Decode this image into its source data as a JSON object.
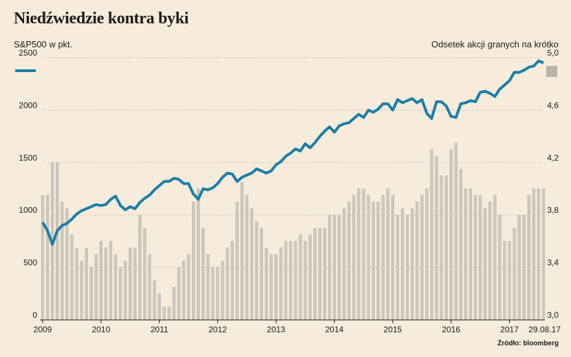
{
  "title": "Niedźwiedzie kontra byki",
  "left_axis_label": "S&P500 w pkt.",
  "right_axis_label": "Odsetek akcji granych na krótko",
  "source": "Źródło: bloomberg",
  "colors": {
    "background": "#f7ebdc",
    "line": "#1a7fa6",
    "bars": "#cfc7bc",
    "bar_edge": "#b5ada3",
    "grid": "#9a9a9a"
  },
  "chart_data": {
    "type": "line+bar",
    "left_axis": {
      "label": "S&P500 w pkt.",
      "ylim": [
        0,
        2500
      ],
      "ticks": [
        0,
        500,
        1000,
        1500,
        2000,
        2500
      ]
    },
    "right_axis": {
      "label": "Odsetek akcji granych na krótko",
      "ylim": [
        3.0,
        5.0
      ],
      "ticks": [
        "3,0",
        "3,4",
        "3,8",
        "4,2",
        "4,6",
        "5,0"
      ]
    },
    "x_ticks": [
      "2009",
      "2010",
      "2011",
      "2012",
      "2013",
      "2014",
      "2015",
      "2016",
      "2017",
      "29.08.17"
    ],
    "x_range": [
      "2009-01",
      "2017-08"
    ],
    "grid": "horizontal dotted",
    "legend": {
      "position": "top-left",
      "line_marker": "S&P500",
      "bar_marker": "short interest"
    },
    "series": [
      {
        "kind": "line",
        "axis": "left",
        "x": [
          "2009-01",
          "2009-02",
          "2009-03",
          "2009-04",
          "2009-05",
          "2009-06",
          "2009-07",
          "2009-08",
          "2009-09",
          "2009-10",
          "2009-11",
          "2009-12",
          "2010-01",
          "2010-02",
          "2010-03",
          "2010-04",
          "2010-05",
          "2010-06",
          "2010-07",
          "2010-08",
          "2010-09",
          "2010-10",
          "2010-11",
          "2010-12",
          "2011-01",
          "2011-02",
          "2011-03",
          "2011-04",
          "2011-05",
          "2011-06",
          "2011-07",
          "2011-08",
          "2011-09",
          "2011-10",
          "2011-11",
          "2011-12",
          "2012-01",
          "2012-02",
          "2012-03",
          "2012-04",
          "2012-05",
          "2012-06",
          "2012-07",
          "2012-08",
          "2012-09",
          "2012-10",
          "2012-11",
          "2012-12",
          "2013-01",
          "2013-02",
          "2013-03",
          "2013-04",
          "2013-05",
          "2013-06",
          "2013-07",
          "2013-08",
          "2013-09",
          "2013-10",
          "2013-11",
          "2013-12",
          "2014-01",
          "2014-02",
          "2014-03",
          "2014-04",
          "2014-05",
          "2014-06",
          "2014-07",
          "2014-08",
          "2014-09",
          "2014-10",
          "2014-11",
          "2014-12",
          "2015-01",
          "2015-02",
          "2015-03",
          "2015-04",
          "2015-05",
          "2015-06",
          "2015-07",
          "2015-08",
          "2015-09",
          "2015-10",
          "2015-11",
          "2015-12",
          "2016-01",
          "2016-02",
          "2016-03",
          "2016-04",
          "2016-05",
          "2016-06",
          "2016-07",
          "2016-08",
          "2016-09",
          "2016-10",
          "2016-11",
          "2016-12",
          "2017-01",
          "2017-02",
          "2017-03",
          "2017-04",
          "2017-05",
          "2017-06",
          "2017-07",
          "2017-08"
        ],
        "values": [
          930,
          850,
          720,
          850,
          900,
          920,
          960,
          1010,
          1040,
          1060,
          1080,
          1100,
          1090,
          1100,
          1150,
          1180,
          1090,
          1050,
          1080,
          1060,
          1120,
          1160,
          1190,
          1240,
          1280,
          1320,
          1320,
          1350,
          1340,
          1300,
          1300,
          1200,
          1150,
          1250,
          1240,
          1260,
          1300,
          1360,
          1400,
          1390,
          1320,
          1360,
          1380,
          1400,
          1440,
          1420,
          1400,
          1420,
          1480,
          1510,
          1560,
          1590,
          1630,
          1610,
          1680,
          1640,
          1690,
          1750,
          1800,
          1840,
          1790,
          1850,
          1870,
          1880,
          1920,
          1960,
          1930,
          2000,
          1980,
          2010,
          2060,
          2060,
          2000,
          2100,
          2070,
          2090,
          2110,
          2070,
          2100,
          1970,
          1920,
          2080,
          2080,
          2040,
          1940,
          1930,
          2060,
          2070,
          2090,
          2080,
          2170,
          2180,
          2160,
          2130,
          2200,
          2240,
          2280,
          2360,
          2360,
          2380,
          2410,
          2420,
          2470,
          2450
        ]
      },
      {
        "kind": "bar",
        "axis": "right",
        "values": [
          3.95,
          3.95,
          4.2,
          4.2,
          3.9,
          3.85,
          3.65,
          3.55,
          3.45,
          3.55,
          3.4,
          3.5,
          3.6,
          3.55,
          3.6,
          3.5,
          3.4,
          3.45,
          3.55,
          3.55,
          3.8,
          3.7,
          3.5,
          3.3,
          3.2,
          3.1,
          3.1,
          3.25,
          3.4,
          3.45,
          3.5,
          3.9,
          4.0,
          3.7,
          3.5,
          3.4,
          3.4,
          3.45,
          3.55,
          3.6,
          3.9,
          4.05,
          3.95,
          3.85,
          3.75,
          3.7,
          3.55,
          3.5,
          3.5,
          3.55,
          3.6,
          3.6,
          3.6,
          3.65,
          3.6,
          3.65,
          3.7,
          3.7,
          3.7,
          3.8,
          3.8,
          3.8,
          3.85,
          3.9,
          3.95,
          4.0,
          4.0,
          3.95,
          3.9,
          3.9,
          3.95,
          4.0,
          3.95,
          3.8,
          3.85,
          3.8,
          3.85,
          3.9,
          3.95,
          4.0,
          4.3,
          4.25,
          4.1,
          4.1,
          4.3,
          4.35,
          4.15,
          4.0,
          4.0,
          3.95,
          3.95,
          3.85,
          3.9,
          3.95,
          3.8,
          3.6,
          3.6,
          3.7,
          3.8,
          3.8,
          3.95,
          4.0,
          4.0,
          4.0
        ]
      }
    ]
  }
}
